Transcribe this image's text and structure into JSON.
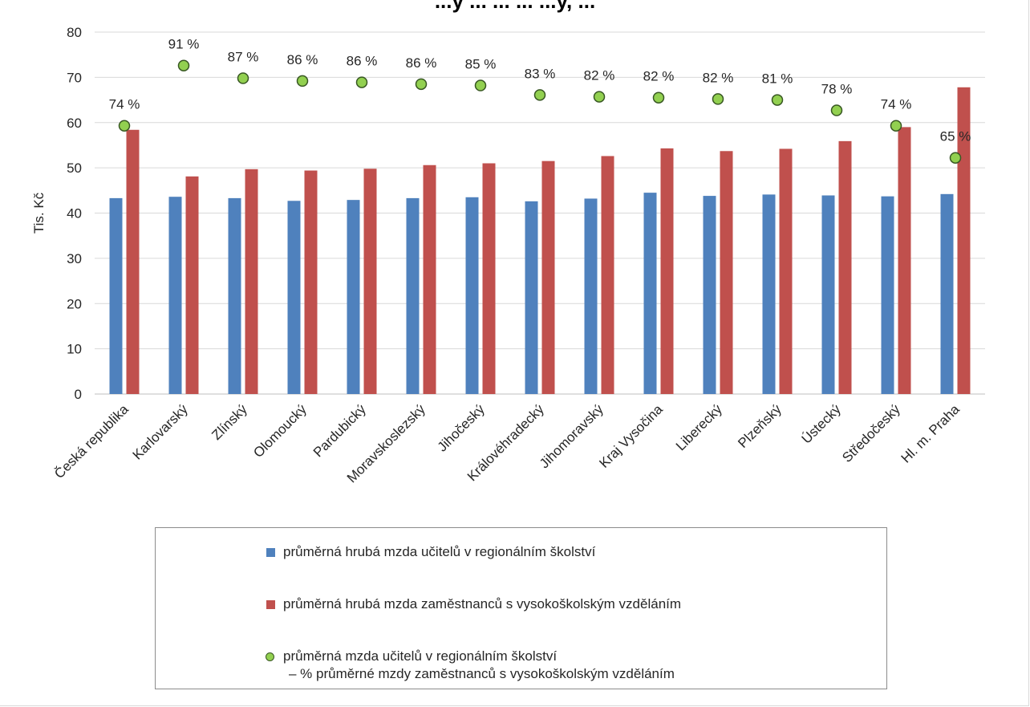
{
  "chart_data": {
    "type": "bar",
    "title": "...y ... ... ... ...y, ...",
    "ylabel": "Tis. Kč",
    "ylim": [
      0,
      80
    ],
    "ytick_step": 10,
    "grid": true,
    "legend_position": "bottom",
    "categories": [
      "Česká republika",
      "Karlovarský",
      "Zlínský",
      "Olomoucký",
      "Pardubický",
      "Moravskoslezský",
      "Jihočeský",
      "Královéhradecký",
      "Jihomoravský",
      "Kraj Vysočina",
      "Liberecký",
      "Plzeňský",
      "Ústecký",
      "Středočeský",
      "Hl. m. Praha"
    ],
    "series": [
      {
        "name": "průměrná hrubá mzda učitelů v regionálním školství",
        "type": "bar",
        "color": "#4f81bd",
        "values": [
          43.3,
          43.6,
          43.3,
          42.7,
          42.9,
          43.3,
          43.5,
          42.6,
          43.2,
          44.5,
          43.8,
          44.1,
          43.9,
          43.7,
          44.2
        ]
      },
      {
        "name": "průměrná hrubá mzda zaměstnanců s vysokoškolským vzděláním",
        "type": "bar",
        "color": "#c0504d",
        "values": [
          58.4,
          48.1,
          49.7,
          49.4,
          49.8,
          50.6,
          51.0,
          51.5,
          52.6,
          54.3,
          53.7,
          54.2,
          55.9,
          59.0,
          67.8
        ]
      },
      {
        "name": "průměrná mzda učitelů v regionálním školství",
        "name_line2": "– % průměrné mzdy zaměstnanců s vysokoškolským vzděláním",
        "type": "scatter",
        "color": "#92d050",
        "values": [
          59.3,
          72.6,
          69.8,
          69.2,
          68.9,
          68.5,
          68.2,
          66.1,
          65.7,
          65.5,
          65.2,
          65.0,
          62.7,
          59.3,
          52.2
        ],
        "labels": [
          "74 %",
          "91 %",
          "87 %",
          "86 %",
          "86 %",
          "86 %",
          "85 %",
          "83 %",
          "82 %",
          "82 %",
          "82 %",
          "81 %",
          "78 %",
          "74 %",
          "65 %"
        ]
      }
    ]
  }
}
